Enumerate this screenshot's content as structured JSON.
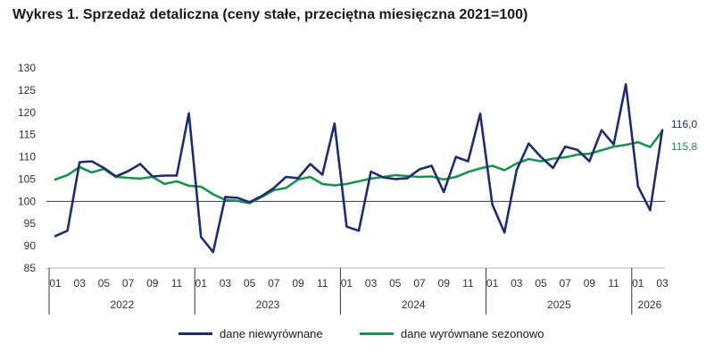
{
  "title": "Wykres 1. Sprzedaż detaliczna (ceny stałe, przeciętna miesięczna 2021=100)",
  "chart_data": {
    "type": "line",
    "title": "Wykres 1. Sprzedaż detaliczna (ceny stałe, przeciętna miesięczna 2021=100)",
    "xlabel": "",
    "ylabel": "",
    "ylim": [
      85,
      130
    ],
    "y_ticks": [
      85,
      90,
      95,
      100,
      105,
      110,
      115,
      120,
      125,
      130
    ],
    "reference_line": 100,
    "x_tick_labels": [
      "01",
      "03",
      "05",
      "07",
      "09",
      "11",
      "01",
      "03",
      "05",
      "07",
      "09",
      "11",
      "01",
      "03",
      "05",
      "07",
      "09",
      "11",
      "01",
      "03",
      "05",
      "07",
      "09",
      "11",
      "01",
      "03"
    ],
    "x_tick_months": [
      1,
      3,
      5,
      7,
      9,
      11,
      13,
      15,
      17,
      19,
      21,
      23,
      25,
      27,
      29,
      31,
      33,
      35,
      37,
      39,
      41,
      43,
      45,
      47,
      49,
      51
    ],
    "years": [
      {
        "label": "2022",
        "start": 1,
        "end": 12
      },
      {
        "label": "2023",
        "start": 13,
        "end": 24
      },
      {
        "label": "2024",
        "start": 25,
        "end": 36
      },
      {
        "label": "2025",
        "start": 37,
        "end": 48
      },
      {
        "label": "2026",
        "start": 49,
        "end": 51
      }
    ],
    "series": [
      {
        "name": "dane niewyrównane",
        "color": "#1f2d6b",
        "values": [
          92.2,
          93.4,
          108.8,
          109.0,
          107.5,
          105.6,
          106.8,
          108.4,
          105.6,
          105.8,
          105.8,
          119.8,
          92.0,
          88.6,
          101.0,
          100.8,
          99.8,
          101.2,
          103.0,
          105.5,
          105.2,
          108.4,
          106.0,
          117.5,
          94.3,
          93.4,
          106.7,
          105.4,
          105.0,
          105.2,
          107.2,
          108.0,
          102.1,
          110.0,
          109.0,
          119.7,
          99.3,
          93.0,
          107.0,
          113.0,
          110.0,
          107.5,
          112.3,
          111.6,
          109.0,
          116.0,
          112.8,
          126.3,
          103.4,
          98.0,
          116.0
        ],
        "end_label": "116,0"
      },
      {
        "name": "dane wyrównane sezonowo",
        "color": "#1e9150",
        "values": [
          104.9,
          105.9,
          107.7,
          106.5,
          107.3,
          105.5,
          105.3,
          105.1,
          105.5,
          103.9,
          104.5,
          103.5,
          103.3,
          101.6,
          100.3,
          100.1,
          99.6,
          101.0,
          102.5,
          103.0,
          104.9,
          105.5,
          103.9,
          103.6,
          103.9,
          104.5,
          105.1,
          105.5,
          105.9,
          105.7,
          105.5,
          105.6,
          104.9,
          105.5,
          106.6,
          107.4,
          108.0,
          107.0,
          108.5,
          109.5,
          109.0,
          109.6,
          109.9,
          110.5,
          110.7,
          111.5,
          112.3,
          112.7,
          113.3,
          112.2,
          115.8
        ],
        "end_label": "115,8"
      }
    ],
    "legend": [
      "dane niewyrównane",
      "dane wyrównane sezonowo"
    ],
    "legend_position": "bottom"
  }
}
